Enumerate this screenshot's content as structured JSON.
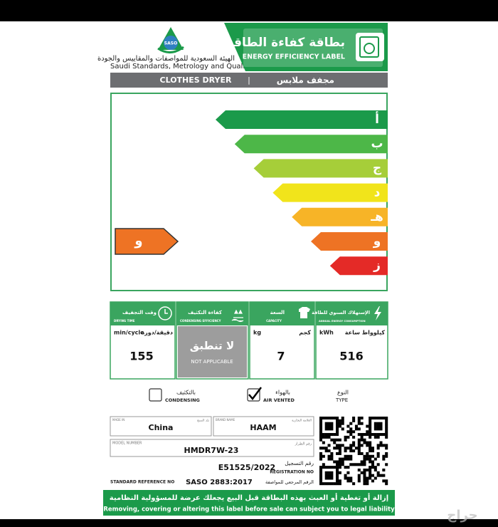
{
  "header": {
    "logo_text": "SASO",
    "org_name_ar": "الهيئة السعودية للمواصفات والمقاييس والجودة",
    "org_name_en": "Saudi Standards, Metrology and Quality Org.",
    "label_title_ar": "بطاقة كفاءة الطاقة",
    "label_title_en": "ENERGY EFFICIENCY LABEL"
  },
  "product": {
    "name_en": "CLOTHES DRYER",
    "separator": "|",
    "name_ar": "مجفف ملابس"
  },
  "energy_classes": [
    {
      "label": "أ",
      "color": "#1b9a4a"
    },
    {
      "label": "ب",
      "color": "#4db748"
    },
    {
      "label": "ج",
      "color": "#a6ce39"
    },
    {
      "label": "د",
      "color": "#f1e41b"
    },
    {
      "label": "هـ",
      "color": "#f7b427"
    },
    {
      "label": "و",
      "color": "#ee7324"
    },
    {
      "label": "ز",
      "color": "#e42a27"
    }
  ],
  "rating": {
    "label": "و",
    "color": "#ee7324"
  },
  "drying_time": {
    "title_ar": "وقت التجفيف",
    "title_en": "DRYING TIME",
    "unit_en": "min/cycle",
    "unit_ar": "دقيقة/دورة",
    "value": "155"
  },
  "condensing_efficiency": {
    "title_ar": "كفاءة التكثيف",
    "title_en": "CONDENSING EFFICIENCY",
    "value_ar": "لا تنطبق",
    "value_en": "NOT APPLICABLE"
  },
  "capacity": {
    "title_ar": "السعة",
    "title_en": "CAPACITY",
    "unit_en": "kg",
    "unit_ar": "كجم",
    "value": "7"
  },
  "energy_consumption": {
    "title_ar": "الإستهلاك السنوي للطاقة",
    "title_en": "ANNUAL ENERGY CONSUMPTION",
    "unit_en": "kWh",
    "unit_ar": "كيلوواط ساعة",
    "value": "516"
  },
  "dryer_type": {
    "label_ar": "النوع",
    "label_en": "TYPE",
    "options": [
      {
        "label_ar": "بالتكثيف",
        "label_en": "CONDENSING",
        "checked": false
      },
      {
        "label_ar": "بالهواء",
        "label_en": "AIR VENTED",
        "checked": true
      }
    ]
  },
  "details": {
    "made_in": {
      "label_en": "MADE IN",
      "label_ar": "بلد الصنع",
      "value": "China"
    },
    "brand": {
      "label_en": "BRAND NAME",
      "label_ar": "العلامة التجارية",
      "value": "HAAM"
    },
    "model": {
      "label_en": "MODEL NUMBER",
      "label_ar": "رقم الطراز",
      "value": "HMDR7W-23"
    },
    "registration": {
      "value": "E51525/2022",
      "label_ar": "رقم التسجيل",
      "label_en": "REGISTRATION NO"
    },
    "standard": {
      "label_en": "STANDARD REFERENCE NO",
      "value": "SASO 2883:2017",
      "label_ar": "الرقم المرجعي للمواصفة"
    }
  },
  "footer": {
    "warning_ar": "إزالة أو تغطية أو العبث بهذه البطاقة قبل البيع يجعلك عرضة للمسؤولية النظامية",
    "warning_en": "Removing, covering or altering this label before sale can subject you to legal liability"
  },
  "watermark": "حراج"
}
